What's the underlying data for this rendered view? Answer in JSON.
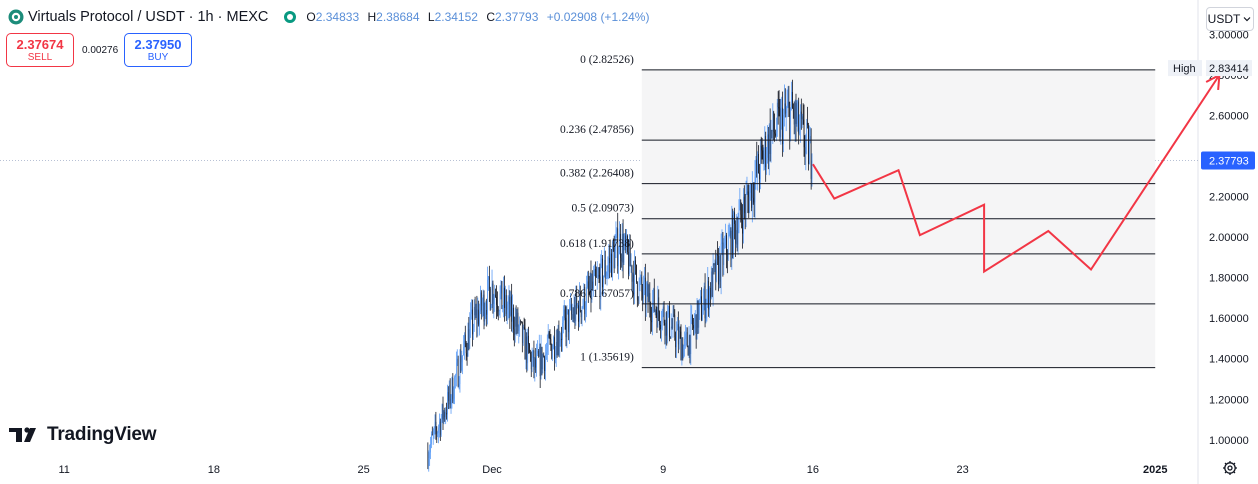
{
  "header": {
    "symbol_title": "Virtuals Protocol / USDT · 1h · MEXC",
    "ohlc": [
      {
        "label": "O",
        "value": "2.34833"
      },
      {
        "label": "H",
        "value": "2.38684"
      },
      {
        "label": "L",
        "value": "2.34152"
      },
      {
        "label": "C",
        "value": "2.37793"
      }
    ],
    "change": "+0.02908 (+1.24%)"
  },
  "trade": {
    "sell_price": "2.37674",
    "sell_label": "SELL",
    "spread": "0.00276",
    "buy_price": "2.37950",
    "buy_label": "BUY"
  },
  "currency_button": "USDT",
  "brand": "TradingView",
  "icons": [
    "symbol-logo-icon",
    "market-status-icon",
    "currency-chevron-icon",
    "tradingview-logo-icon",
    "settings-gear-icon"
  ],
  "colors": {
    "up_candle": "#5b9cf6",
    "down_candle": "#131722",
    "projection": "#f23645",
    "price_tag": "#2962ff",
    "market_open": "#089981"
  },
  "chart_data": {
    "type": "candlestick",
    "timeframe": "1h",
    "y_axis": {
      "ticks": [
        "1.00000",
        "1.20000",
        "1.40000",
        "1.60000",
        "1.80000",
        "2.00000",
        "2.20000",
        "2.40000",
        "2.60000",
        "2.80000",
        "3.00000"
      ],
      "tick_values": [
        1.0,
        1.2,
        1.4,
        1.6,
        1.8,
        2.0,
        2.2,
        2.4,
        2.6,
        2.8,
        3.0
      ],
      "range": [
        0.92,
        3.17
      ]
    },
    "x_axis": {
      "ticks": [
        "11",
        "18",
        "25",
        "Dec",
        "9",
        "16",
        "23",
        "2025"
      ],
      "tick_dates": [
        "2024-11-11",
        "2024-11-18",
        "2024-11-25",
        "2024-12-01",
        "2024-12-09",
        "2024-12-16",
        "2024-12-23",
        "2025-01-01"
      ],
      "range": [
        "2024-11-08",
        "2025-01-03"
      ]
    },
    "high_marker": {
      "label": "High",
      "value": 2.83414
    },
    "last_price": {
      "value": 2.37793,
      "label": "2.37793"
    },
    "fib_retracement": {
      "start_date": "2024-12-08",
      "end_date": "2025-01-01",
      "levels": [
        {
          "ratio": "0",
          "value": 2.82526,
          "label": "0 (2.82526)"
        },
        {
          "ratio": "0.236",
          "value": 2.47856,
          "label": "0.236 (2.47856)"
        },
        {
          "ratio": "0.382",
          "value": 2.26408,
          "label": "0.382 (2.26408)"
        },
        {
          "ratio": "0.5",
          "value": 2.09073,
          "label": "0.5 (2.09073)"
        },
        {
          "ratio": "0.618",
          "value": 1.91738,
          "label": "0.618 (1.91738)"
        },
        {
          "ratio": "0.786",
          "value": 1.67057,
          "label": "0.786 (1.67057)"
        },
        {
          "ratio": "1",
          "value": 1.35619,
          "label": "1 (1.35619)"
        }
      ]
    },
    "price_path": [
      [
        "2024-11-28",
        0.94
      ],
      [
        "2024-11-29",
        1.2
      ],
      [
        "2024-11-30",
        1.55
      ],
      [
        "2024-12-01",
        1.75
      ],
      [
        "2024-12-02",
        1.6
      ],
      [
        "2024-12-03",
        1.35
      ],
      [
        "2024-12-04",
        1.5
      ],
      [
        "2024-12-05",
        1.65
      ],
      [
        "2024-12-06",
        1.78
      ],
      [
        "2024-12-07",
        1.98
      ],
      [
        "2024-12-08",
        1.72
      ],
      [
        "2024-12-09",
        1.62
      ],
      [
        "2024-12-10",
        1.45
      ],
      [
        "2024-12-11",
        1.7
      ],
      [
        "2024-12-12",
        1.95
      ],
      [
        "2024-12-13",
        2.2
      ],
      [
        "2024-12-14",
        2.5
      ],
      [
        "2024-12-15",
        2.62
      ],
      [
        "2024-12-16",
        2.38
      ]
    ],
    "projection_path": [
      [
        "2024-12-16",
        2.36
      ],
      [
        "2024-12-17",
        2.19
      ],
      [
        "2024-12-20",
        2.33
      ],
      [
        "2024-12-21",
        2.01
      ],
      [
        "2024-12-24",
        2.16
      ],
      [
        "2024-12-24",
        1.83
      ],
      [
        "2024-12-27",
        2.03
      ],
      [
        "2024-12-29",
        1.84
      ],
      [
        "2025-01-04",
        2.8
      ]
    ]
  }
}
